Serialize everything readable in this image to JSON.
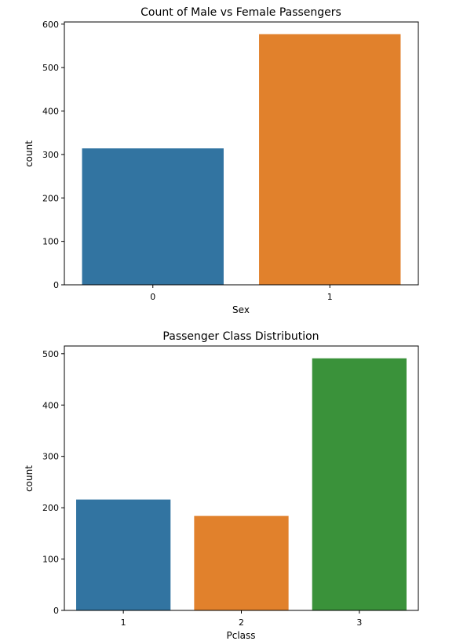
{
  "chart_data": [
    {
      "type": "bar",
      "title": "Count of Male vs Female Passengers",
      "xlabel": "Sex",
      "ylabel": "count",
      "categories": [
        "0",
        "1"
      ],
      "values": [
        314,
        577
      ],
      "colors": [
        "#3274a1",
        "#e1812c"
      ],
      "ylim": [
        0,
        605
      ],
      "yticks": [
        "0",
        "100",
        "200",
        "300",
        "400",
        "500",
        "600"
      ],
      "grid": false
    },
    {
      "type": "bar",
      "title": "Passenger Class Distribution",
      "xlabel": "Pclass",
      "ylabel": "count",
      "categories": [
        "1",
        "2",
        "3"
      ],
      "values": [
        216,
        184,
        491
      ],
      "colors": [
        "#3274a1",
        "#e1812c",
        "#3a923a"
      ],
      "ylim": [
        0,
        515
      ],
      "yticks": [
        "0",
        "100",
        "200",
        "300",
        "400",
        "500"
      ],
      "grid": false
    }
  ]
}
